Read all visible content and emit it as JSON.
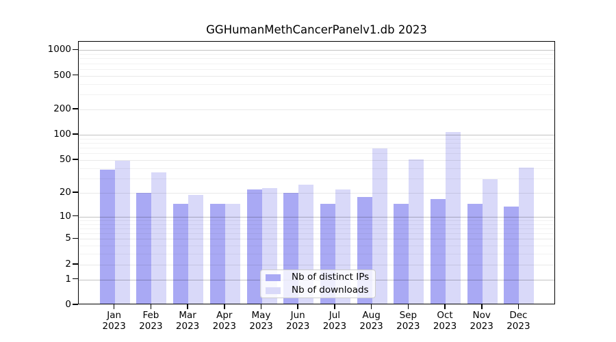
{
  "figure": {
    "title": "GGHumanMethCancerPanelv1.db 2023",
    "background": "#ffffff"
  },
  "legend": {
    "items": [
      {
        "label": "Nb of distinct IPs",
        "color": "#a9a9f4"
      },
      {
        "label": "Nb of downloads",
        "color": "#d9d9f9"
      }
    ]
  },
  "chart_data": {
    "type": "bar",
    "title": "GGHumanMethCancerPanelv1.db 2023",
    "categories": [
      "Jan",
      "Feb",
      "Mar",
      "Apr",
      "May",
      "Jun",
      "Jul",
      "Aug",
      "Sep",
      "Oct",
      "Nov",
      "Dec"
    ],
    "year": "2023",
    "series": [
      {
        "name": "Nb of distinct IPs",
        "color": "#a9a9f4",
        "values": [
          37,
          19,
          14,
          14,
          21,
          19,
          14,
          17,
          14,
          16,
          14,
          13
        ]
      },
      {
        "name": "Nb of downloads",
        "color": "#d9d9f9",
        "values": [
          47,
          34,
          18,
          14,
          22,
          24,
          21,
          66,
          49,
          105,
          28,
          39
        ]
      }
    ],
    "xlabel": "",
    "ylabel": "",
    "yscale": "log1p",
    "ylim": [
      0,
      1260
    ],
    "yticks": [
      1000,
      500,
      200,
      100,
      50,
      20,
      10,
      5,
      2,
      1,
      0
    ],
    "ytick_labels": [
      "1000",
      "500",
      "200",
      "100",
      "50",
      "20",
      "10",
      "5",
      "2",
      "1",
      "0"
    ],
    "minor_grid": [
      900,
      800,
      700,
      600,
      400,
      300,
      90,
      80,
      70,
      60,
      40,
      30,
      9,
      8,
      7,
      6,
      4,
      3
    ],
    "grid": true,
    "legend_position": "lower center"
  }
}
